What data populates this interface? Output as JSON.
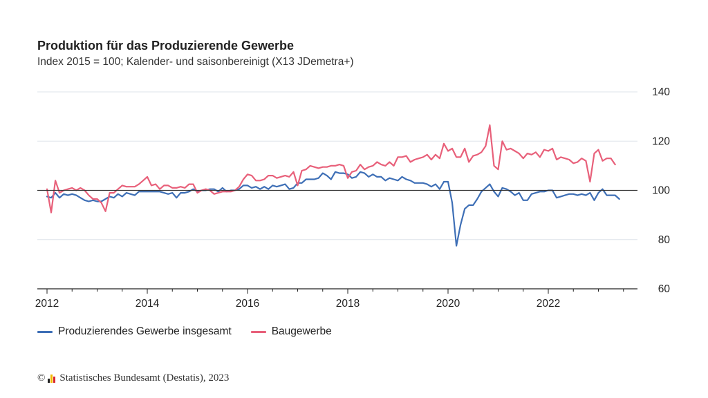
{
  "header": {
    "title": "Produktion für das Produzierende Gewerbe",
    "subtitle": "Index 2015 = 100; Kalender- und saisonbereinigt (X13 JDemetra+)"
  },
  "footer": {
    "copyright_symbol": "©",
    "source": "Statistisches Bundesamt (Destatis), 2023"
  },
  "colors": {
    "series_blue": "#3e6fb6",
    "series_red": "#e8607a",
    "reference_line": "#333333",
    "grid": "#dde3ea",
    "logo_yellow": "#f2b800",
    "logo_red": "#d9262e",
    "logo_black": "#222222"
  },
  "chart_data": {
    "type": "line",
    "x_start": "2012-01",
    "frequency": "monthly",
    "xticks": [
      "2012",
      "2014",
      "2016",
      "2018",
      "2020",
      "2022"
    ],
    "yticks": [
      "60",
      "80",
      "100",
      "120",
      "140"
    ],
    "ylim": [
      60,
      140
    ],
    "reference_line": 100,
    "series": [
      {
        "name": "Produzierendes Gewerbe insgesamt",
        "color": "#3e6fb6",
        "values": [
          97.5,
          97,
          99,
          97,
          98.5,
          98,
          98.5,
          98,
          97,
          96,
          95.5,
          96,
          95.5,
          95.5,
          96.5,
          97.5,
          97,
          98.5,
          97.5,
          99,
          98.5,
          98,
          99.5,
          99.5,
          99.5,
          99.5,
          99.5,
          99.5,
          99,
          98.5,
          99,
          97,
          99,
          99,
          99.5,
          100.5,
          99.5,
          100,
          100,
          100.5,
          100.5,
          99.5,
          101,
          99.5,
          100,
          100,
          100.5,
          102,
          102,
          101,
          101.5,
          100.5,
          101.5,
          100.5,
          102,
          101.5,
          102,
          102.5,
          100.5,
          101,
          103,
          103,
          104.5,
          104.5,
          104.5,
          105,
          107,
          106,
          104.5,
          107.5,
          107,
          107,
          106.5,
          105,
          105.5,
          107.5,
          107,
          105.5,
          106.5,
          105.5,
          105.5,
          104,
          105,
          104.5,
          104,
          105.5,
          104.5,
          104,
          103,
          103,
          103,
          102.5,
          101.5,
          102.5,
          100.5,
          103.5,
          103.5,
          95,
          77.5,
          86,
          92.5,
          94,
          94,
          96.5,
          99.5,
          101,
          102.5,
          99.5,
          97.5,
          101,
          100.5,
          99.5,
          98,
          99,
          96,
          96,
          98.5,
          99,
          99.5,
          99.5,
          100,
          100,
          97,
          97.5,
          98,
          98.5,
          98.5,
          98,
          98.5,
          98,
          99,
          96,
          99,
          100.5,
          98,
          98,
          98,
          96.5
        ]
      },
      {
        "name": "Baugewerbe",
        "color": "#e8607a",
        "values": [
          100.5,
          91,
          104,
          99,
          100,
          100.5,
          101,
          100,
          101,
          100,
          98,
          96.5,
          96.5,
          95,
          91.5,
          99,
          99,
          100.5,
          102,
          101.5,
          101.5,
          101.5,
          102.5,
          104,
          105.5,
          102,
          102.5,
          100.5,
          102,
          102,
          101,
          101,
          101.5,
          101,
          102.5,
          102.5,
          99,
          100,
          100.5,
          100,
          98.5,
          99,
          99.5,
          99.5,
          99.5,
          100,
          101.5,
          104.5,
          106.5,
          106,
          104,
          104,
          104.5,
          106,
          106,
          105,
          105.5,
          106,
          105.5,
          107.5,
          102,
          108,
          108.5,
          110,
          109.5,
          109,
          109.5,
          109.5,
          110,
          110,
          110.5,
          110,
          105,
          107.5,
          108,
          110.5,
          108.5,
          109.5,
          110,
          111.5,
          110.5,
          110,
          111.5,
          110,
          113.5,
          113.5,
          114,
          111.5,
          112.5,
          113,
          113.5,
          114.5,
          112.5,
          114.5,
          113,
          119,
          116,
          117,
          113.5,
          113.5,
          117,
          111.5,
          114,
          114.5,
          115.5,
          118,
          126.5,
          110,
          108.5,
          120,
          116.5,
          117,
          116,
          115,
          113,
          115,
          114.5,
          115.5,
          113.5,
          116.5,
          116,
          117,
          112.5,
          113.5,
          113,
          112.5,
          111,
          111.5,
          113,
          112,
          103.5,
          115,
          116.5,
          112,
          113,
          113,
          110.5
        ]
      }
    ],
    "legend_position": "bottom-left",
    "grid": "horizontal"
  }
}
